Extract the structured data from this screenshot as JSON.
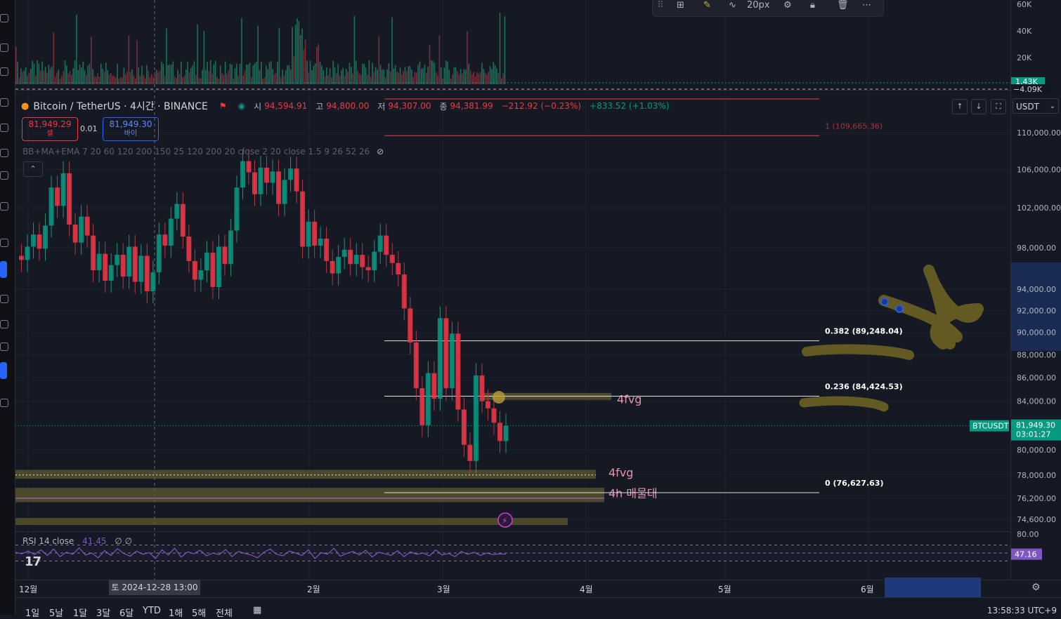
{
  "legend": {
    "symbol": "Bitcoin / TetherUS · 4시간 · BINANCE",
    "open_label": "시",
    "open": "94,594.91",
    "high_label": "고",
    "high": "94,800.00",
    "low_label": "저",
    "low": "94,307.00",
    "close_label": "종",
    "close": "94,381.99",
    "change": "−212.92 (−0.23%)",
    "change2": "+833.52 (+1.03%)"
  },
  "trade": {
    "sell_price": "81,949.29",
    "sell_label": "셀",
    "buy_price": "81,949.30",
    "buy_label": "바이",
    "spread": "0.01"
  },
  "indicator_legend": "BB+MA+EMA 7 20 60 120 200 150 25 120 200 20 close 2 20 close 1.5 9 26 52 26",
  "rsi_legend": {
    "label": "RSI 14 close",
    "value": "41.45",
    "extra": "∅ ∅"
  },
  "currency": "USDT",
  "toolbar": {
    "stroke_width": "20px"
  },
  "time_axis": {
    "labels": [
      "12월",
      "2월",
      "3월",
      "4월",
      "5월",
      "6월"
    ],
    "crosshair_date": "토 2024-12-28   13:00"
  },
  "bottom_bar": {
    "ranges": [
      "1일",
      "5날",
      "1달",
      "3달",
      "6달",
      "YTD",
      "1해",
      "5해",
      "전체"
    ],
    "clock": "13:58:33 UTC+9"
  },
  "colors": {
    "background": "#151924",
    "up": "#089981",
    "down": "#f23645",
    "rsi": "#7e57c2",
    "zone": "#5c5a2e",
    "annotation": "#e88fb4"
  },
  "chart_data": [
    {
      "type": "line",
      "title": "Bitcoin / TetherUS · 4시간 · BINANCE",
      "xlabel": "",
      "ylabel": "",
      "y_scale": "log",
      "ylim": [
        73500,
        112000
      ],
      "price_ticks": [
        "110,000.00",
        "106,000.00",
        "102,000.00",
        "98,000.00",
        "94,000.00",
        "92,000.00",
        "90,000.00",
        "88,000.00",
        "86,000.00",
        "84,000.00",
        "80,000.00",
        "78,000.00",
        "76,200.00",
        "74,600.00"
      ],
      "x_ticks": [
        "12월",
        "2월",
        "3월",
        "4월",
        "5월",
        "6월"
      ],
      "series": [
        {
          "values": [
            97200,
            96800,
            98100,
            99300,
            97900,
            100200,
            104100,
            102200,
            105600,
            100300,
            98500,
            101100,
            99200,
            95800,
            97400,
            94800,
            96300,
            97300,
            95200,
            98100,
            94700,
            97200,
            93800,
            95600,
            99300,
            98200,
            100900,
            102400,
            99100,
            96700,
            94900,
            95800,
            97500,
            94200,
            98100,
            96400,
            99700,
            104100,
            106900,
            105700,
            103400,
            106200,
            104600,
            105800,
            102400,
            104900,
            106100,
            103700,
            98100,
            100600,
            98200,
            98900,
            96700,
            95500,
            97100,
            97800,
            96400,
            97300,
            96100,
            95800,
            97600,
            99200,
            97300,
            96500,
            95400,
            92200,
            89100,
            85100,
            82000,
            86400,
            84200,
            91300,
            85100,
            89900,
            83300,
            80400,
            79100,
            86200,
            84000,
            83400,
            82200,
            80700,
            81949
          ]
        }
      ],
      "last_price": "81,949.30",
      "last_price_label": "BTCUSDT",
      "countdown": "03:01:27",
      "fib_levels": [
        {
          "ratio": "1",
          "price": 109665.36,
          "label": "1 (109,665.36)"
        },
        {
          "ratio": "0.382",
          "price": 89248.04,
          "label": "0.382 (89,248.04)"
        },
        {
          "ratio": "0.236",
          "price": 84424.53,
          "label": "0.236 (84,424.53)"
        },
        {
          "ratio": "0",
          "price": 76627.63,
          "label": "0 (76,627.63)"
        }
      ],
      "zones": [
        {
          "label": "4fvg",
          "from": 84100,
          "to": 84700
        },
        {
          "label": "4fvg",
          "from": 77700,
          "to": 78400
        },
        {
          "label": "4h 매물대",
          "from": 75900,
          "to": 77000
        },
        {
          "label": "",
          "from": 74200,
          "to": 74700
        }
      ]
    },
    {
      "type": "bar",
      "title": "Volume",
      "y_ticks": [
        "60K",
        "40K",
        "20K"
      ],
      "ylim": [
        0,
        62000
      ],
      "last_value": "1.43K",
      "other_value": "−4.09K"
    },
    {
      "type": "line",
      "title": "RSI 14 close",
      "ylim": [
        20,
        80
      ],
      "y_ticks": [
        "80.00"
      ],
      "current": "47.16",
      "values": [
        52,
        48,
        55,
        46,
        58,
        44,
        60,
        41,
        52,
        47,
        63,
        45,
        50,
        38,
        56,
        44,
        61,
        49,
        42,
        55,
        47,
        51,
        36,
        58,
        45,
        62,
        40,
        53,
        48,
        57,
        43,
        50,
        46,
        59,
        41,
        54,
        49,
        45,
        38,
        52,
        60,
        47,
        43,
        55,
        50,
        44,
        58,
        36,
        51,
        47,
        62,
        42,
        49,
        54,
        45,
        57,
        40,
        52,
        48,
        44,
        56,
        41,
        53,
        47,
        50,
        43,
        58,
        45,
        49,
        41,
        54,
        47,
        52,
        44,
        50,
        46,
        48,
        47
      ]
    }
  ]
}
